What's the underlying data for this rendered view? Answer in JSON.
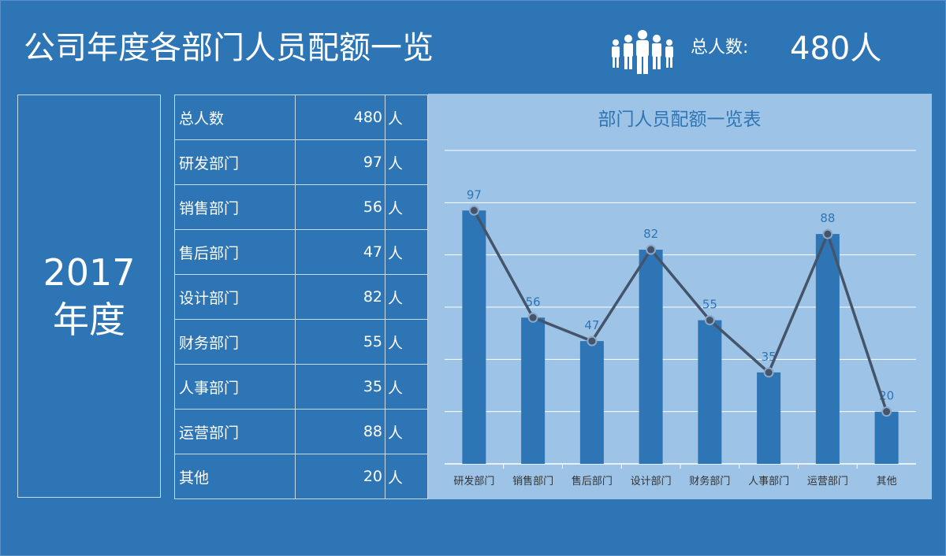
{
  "header": {
    "title": "公司年度各部门人员配额一览",
    "total_label": "总人数:",
    "total_value": "480人"
  },
  "year": {
    "number": "2017",
    "label": "年度"
  },
  "table": {
    "rows": [
      {
        "name": "总人数",
        "value": "480",
        "unit": "人"
      },
      {
        "name": "研发部门",
        "value": "97",
        "unit": "人"
      },
      {
        "name": "销售部门",
        "value": "56",
        "unit": "人"
      },
      {
        "name": "售后部门",
        "value": "47",
        "unit": "人"
      },
      {
        "name": "设计部门",
        "value": "82",
        "unit": "人"
      },
      {
        "name": "财务部门",
        "value": "55",
        "unit": "人"
      },
      {
        "name": "人事部门",
        "value": "35",
        "unit": "人"
      },
      {
        "name": "运营部门",
        "value": "88",
        "unit": "人"
      },
      {
        "name": "其他",
        "value": "20",
        "unit": "人"
      }
    ]
  },
  "colors": {
    "bar": "#2E75B6",
    "line": "#44546A",
    "grid": "#ffffff",
    "label": "#2E75B6",
    "axis_text": "#333333"
  },
  "chart_data": {
    "type": "bar",
    "title": "部门人员配额一览表",
    "categories": [
      "研发部门",
      "销售部门",
      "售后部门",
      "设计部门",
      "财务部门",
      "人事部门",
      "运营部门",
      "其他"
    ],
    "values": [
      97,
      56,
      47,
      82,
      55,
      35,
      88,
      20
    ],
    "overlay": "line",
    "ylim": [
      0,
      120
    ],
    "grid": true,
    "data_labels": true
  }
}
